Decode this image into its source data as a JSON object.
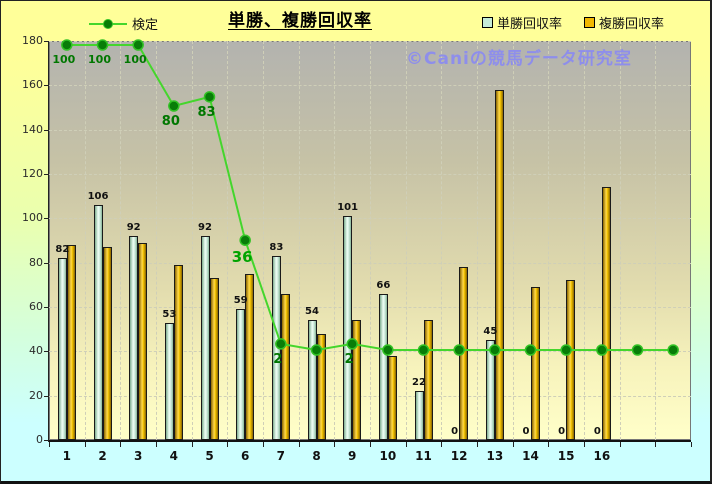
{
  "chart_data": {
    "type": "bar",
    "title": "単勝、複勝回収率",
    "watermark": "©Caniの競馬データ研究室",
    "categories": [
      "1",
      "2",
      "3",
      "4",
      "5",
      "6",
      "7",
      "8",
      "9",
      "10",
      "11",
      "12",
      "13",
      "14",
      "15",
      "16"
    ],
    "n_slots": 18,
    "y_axis": {
      "min": 0,
      "max": 180,
      "step": 20
    },
    "grid": "dashed",
    "legend_position": "top",
    "series": [
      {
        "name": "単勝回収率",
        "type": "bar",
        "values": [
          82,
          106,
          92,
          53,
          92,
          59,
          83,
          54,
          101,
          66,
          22,
          0,
          45,
          0,
          0,
          0
        ],
        "labels": [
          "82",
          "106",
          "92",
          "53",
          "92",
          "59",
          "83",
          "54",
          "101",
          "66",
          "22",
          "0",
          "45",
          "0",
          "0",
          "0"
        ]
      },
      {
        "name": "複勝回収率",
        "type": "bar",
        "values": [
          88,
          87,
          89,
          79,
          73,
          75,
          66,
          48,
          54,
          38,
          54,
          78,
          158,
          69,
          72,
          114
        ],
        "labels": []
      },
      {
        "name": "検定",
        "type": "line",
        "axis": "secondary",
        "points": [
          {
            "v": 100,
            "label": "100",
            "emph": 0
          },
          {
            "v": 100,
            "label": "100",
            "emph": 0
          },
          {
            "v": 100,
            "label": "100",
            "emph": 0
          },
          {
            "v": 80,
            "label": "80",
            "emph": 1
          },
          {
            "v": 83,
            "label": "83",
            "emph": 1
          },
          {
            "v": 36,
            "label": "36",
            "emph": 2
          },
          {
            "v": 2,
            "label": "2",
            "emph": 1
          },
          {
            "v": 0,
            "label": "",
            "emph": 0
          },
          {
            "v": 2,
            "label": "2",
            "emph": 1
          },
          {
            "v": 0,
            "label": "",
            "emph": 0
          },
          {
            "v": 0,
            "label": "",
            "emph": 0
          },
          {
            "v": 0,
            "label": "",
            "emph": 0
          },
          {
            "v": 0,
            "label": "",
            "emph": 0
          },
          {
            "v": 0,
            "label": "",
            "emph": 0
          },
          {
            "v": 0,
            "label": "",
            "emph": 0
          },
          {
            "v": 0,
            "label": "",
            "emph": 0
          },
          {
            "v": 0,
            "label": "",
            "emph": 0
          },
          {
            "v": 0,
            "label": "",
            "emph": 0
          }
        ]
      }
    ],
    "colors": {
      "background_top": "#ffff99",
      "background_bottom": "#ccffff",
      "plot_top": "#b3b3af",
      "plot_bottom": "#ffffc9",
      "bar_win": "#cdeedd",
      "bar_place": "#f5c400",
      "line": "#44d62c",
      "marker": "#087d08",
      "line_label_green": "#007700",
      "line_label_bright": "#00a300",
      "watermark": "#8e8eeb"
    }
  }
}
